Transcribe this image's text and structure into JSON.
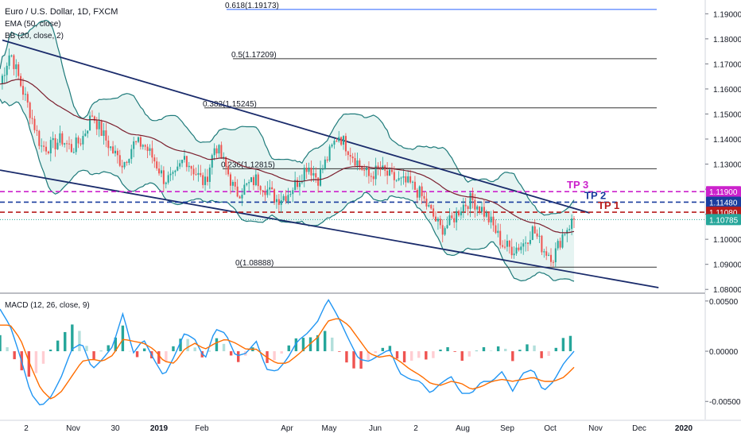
{
  "legend": {
    "symbol": "Euro / U.S. Dollar, 1D, FXCM",
    "ema": "EMA (50, close)",
    "bb": "BB (20, close, 2)",
    "macd": "MACD (12, 26, close, 9)"
  },
  "colors": {
    "candle_up": "#26a69a",
    "candle_down": "#ef5350",
    "ema": "#7b1f2e",
    "bb_line": "#1e7a7a",
    "bb_fill": "#e6f4f2",
    "channel": "#1a2b6b",
    "fib": "#333333",
    "fib_top": "#2962ff",
    "tp1": "#b71c1c",
    "tp2": "#1a3d9e",
    "tp3": "#cc22cc",
    "macd_line": "#2196f3",
    "signal_line": "#ff6d00",
    "hist_up_strong": "#26a69a",
    "hist_up_weak": "#b2dfdb",
    "hist_down_strong": "#ef5350",
    "hist_down_weak": "#ffcdd2",
    "price_badge": "#26a69a"
  },
  "chart_data": {
    "type": "candlestick",
    "price_range": [
      1.0788,
      1.1955
    ],
    "macd_range": [
      -0.0068,
      0.0057
    ],
    "price_ticks": [
      "1.19000",
      "1.18000",
      "1.17000",
      "1.16000",
      "1.15000",
      "1.14000",
      "1.13000",
      "1.12000",
      "1.11000",
      "1.10000",
      "1.09000",
      "1.08000"
    ],
    "macd_ticks": [
      "0.00500",
      "0.00000",
      "-0.00500"
    ],
    "time_ticks": [
      "2",
      "Nov",
      "30",
      "2019",
      "Feb",
      "Apr",
      "May",
      "Jun",
      "2",
      "Aug",
      "Sep",
      "Oct",
      "Nov",
      "Dec",
      "2020"
    ],
    "fib_levels": [
      {
        "label": "0.618(1.19173)",
        "value": 1.19173
      },
      {
        "label": "0.5(1.17209)",
        "value": 1.17209
      },
      {
        "label": "0.382(1.15245)",
        "value": 1.15245
      },
      {
        "label": "0.236(1.12815)",
        "value": 1.12815
      },
      {
        "label": "0(1.08888)",
        "value": 1.08888
      }
    ],
    "targets": [
      {
        "label": "TP 3",
        "value": 1.119,
        "badge": "1.11900"
      },
      {
        "label": "TP 2",
        "value": 1.1148,
        "badge": "1.11480"
      },
      {
        "label": "TP 1",
        "value": 1.1108,
        "badge": "1.11080"
      }
    ],
    "last_price": {
      "value": 1.10785,
      "label": "1.10785"
    },
    "channel": {
      "upper": {
        "points": [
          [
            "2018-10-01",
            1.1795
          ],
          [
            "2019-10-28",
            1.1105
          ]
        ]
      },
      "lower": {
        "points": [
          [
            "2018-10-01",
            1.1276
          ],
          [
            "2019-12-15",
            1.0807
          ]
        ]
      }
    },
    "close_path": [
      1.162,
      1.175,
      1.162,
      1.15,
      1.137,
      1.137,
      1.14,
      1.136,
      1.14,
      1.15,
      1.142,
      1.135,
      1.13,
      1.138,
      1.138,
      1.132,
      1.124,
      1.124,
      1.133,
      1.127,
      1.122,
      1.138,
      1.129,
      1.118,
      1.121,
      1.124,
      1.12,
      1.116,
      1.118,
      1.123,
      1.13,
      1.124,
      1.133,
      1.142,
      1.136,
      1.13,
      1.125,
      1.128,
      1.125,
      1.123,
      1.122,
      1.118,
      1.111,
      1.104,
      1.107,
      1.113,
      1.116,
      1.112,
      1.106,
      1.098,
      1.096,
      1.098,
      1.104,
      1.096,
      1.093,
      1.103,
      1.108
    ],
    "macd_path": [
      0.0042,
      0.0025,
      -0.0006,
      -0.0042,
      -0.0055,
      -0.0045,
      -0.0025,
      0.0002,
      0.0008,
      -0.0018,
      -0.0008,
      0.0005,
      0.0038,
      -0.0002,
      0.0012,
      -0.0008,
      -0.0025,
      -0.0005,
      0.0018,
      0.0012,
      -0.0008,
      0.0022,
      0.0018,
      -0.0005,
      -0.0002,
      0.001,
      -0.0018,
      -0.002,
      -0.0008,
      0.001,
      0.0018,
      0.003,
      0.0052,
      0.0034,
      0.0012,
      -0.0008,
      -0.001,
      -0.0004,
      0.0002,
      -0.0022,
      -0.0028,
      -0.003,
      -0.0042,
      -0.0032,
      -0.0025,
      -0.0042,
      -0.0042,
      -0.003,
      -0.003,
      -0.002,
      -0.004,
      -0.0022,
      -0.0018,
      -0.004,
      -0.003,
      -0.0012,
      0.0
    ],
    "signal_path": [
      0.0026,
      0.0026,
      0.0012,
      -0.0015,
      -0.0038,
      -0.0048,
      -0.004,
      -0.0025,
      -0.001,
      -0.0008,
      -0.001,
      -0.0004,
      0.0012,
      0.001,
      0.0008,
      0.0002,
      -0.001,
      -0.0012,
      0.0002,
      0.0008,
      0.0002,
      0.0008,
      0.0012,
      0.0008,
      0.0002,
      0.0002,
      -0.0006,
      -0.0012,
      -0.0012,
      -0.0004,
      0.0005,
      0.0014,
      0.003,
      0.0033,
      0.0026,
      0.0012,
      -0.0002,
      -0.0006,
      -0.0004,
      -0.001,
      -0.0018,
      -0.0024,
      -0.0032,
      -0.0034,
      -0.003,
      -0.0032,
      -0.0038,
      -0.0035,
      -0.003,
      -0.0028,
      -0.003,
      -0.0028,
      -0.0026,
      -0.003,
      -0.003,
      -0.0026,
      -0.0016
    ]
  }
}
